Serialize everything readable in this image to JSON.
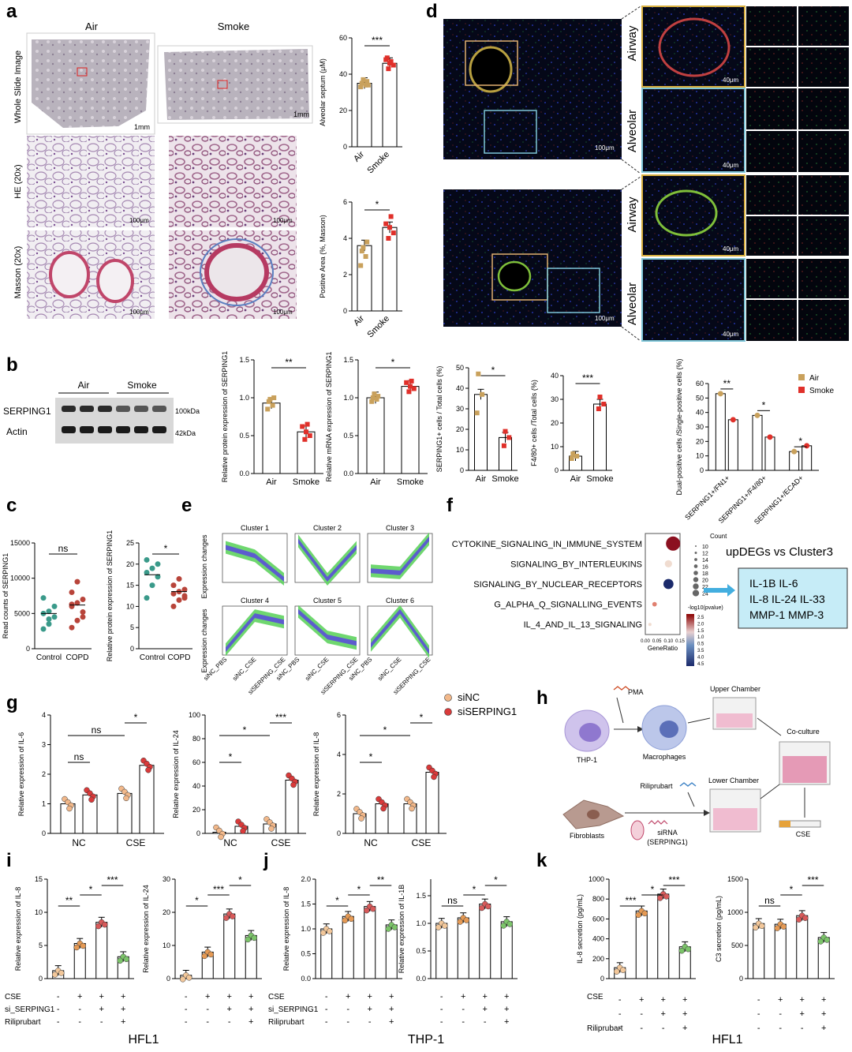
{
  "panels": {
    "a": {
      "letter": "a",
      "col_air": "Air",
      "col_smoke": "Smoke",
      "row_wsi": "Whole Slide Image",
      "row_he": "HE (20x)",
      "row_masson": "Masson (20x)",
      "scale_1mm": "1mm",
      "scale_100um": "100μm"
    },
    "d": {
      "letter": "d",
      "airway": "Airway",
      "alveolar": "Alveolar",
      "scale_100um": "100μm",
      "scale_40um": "40μm"
    },
    "b": {
      "letter": "b",
      "wb_air": "Air",
      "wb_smoke": "Smoke",
      "wb_serping1": "SERPING1",
      "wb_actin": "Actin",
      "wb_100kda": "100kDa",
      "wb_42kda": "42kDa"
    },
    "c": {
      "letter": "c"
    },
    "e": {
      "letter": "e",
      "ylabel": "Expression changes",
      "clusters": [
        "Cluster 1",
        "Cluster 2",
        "Cluster 3",
        "Cluster 4",
        "Cluster 5",
        "Cluster 6"
      ],
      "xticks": [
        "siNC_PBS",
        "siNC_CSE",
        "siSERPING_CSE"
      ]
    },
    "f": {
      "letter": "f",
      "terms": [
        "CYTOKINE_SIGNALING_IN_IMMUNE_SYSTEM",
        "SIGNALING_BY_INTERLEUKINS",
        "SIGNALING_BY_NUCLEAR_RECEPTORS",
        "G_ALPHA_Q_SIGNALLING_EVENTS",
        "IL_4_AND_IL_13_SIGNALING"
      ],
      "xlabel": "GeneRatio",
      "xticks": [
        "0.00",
        "0.05",
        "0.10",
        "0.15"
      ],
      "count_title": "Count",
      "count_values": [
        "10",
        "12",
        "14",
        "16",
        "18",
        "20",
        "22",
        "24"
      ],
      "color_title": "-log10(pvalue)",
      "color_values": [
        "2.5",
        "2.0",
        "1.5",
        "1.0",
        "0.5",
        "3.5",
        "4.0",
        "4.5"
      ],
      "box_title": "upDEGs vs Cluster3",
      "box_lines": [
        "IL-1B IL-6",
        "IL-8 IL-24 IL-33",
        "MMP-1 MMP-3"
      ]
    },
    "g": {
      "letter": "g",
      "legend": [
        "siNC",
        "siSERPING1"
      ]
    },
    "h": {
      "letter": "h",
      "thp1": "THP-1",
      "pma": "PMA",
      "macrophages": "Macrophages",
      "upper": "Upper Chamber",
      "coculture": "Co-culture",
      "lower": "Lower Chamber",
      "riliprubart": "Riliprubart",
      "fibroblasts": "Fibroblasts",
      "sirna": "siRNA",
      "sirna2": "(SERPING1)",
      "cse": "CSE"
    },
    "i": {
      "letter": "i",
      "cell": "HFL1"
    },
    "j": {
      "letter": "j",
      "cell": "THP-1"
    },
    "k": {
      "letter": "k",
      "cell": "HFL1"
    }
  },
  "treat_labels": {
    "cse": "CSE",
    "si": "si_SERPING1",
    "ril": "Riliprubart"
  },
  "treat_signs": {
    "cse": [
      "-",
      "+",
      "+",
      "+"
    ],
    "si": [
      "-",
      "-",
      "+",
      "+"
    ],
    "ril": [
      "-",
      "-",
      "-",
      "+"
    ]
  },
  "colors": {
    "air": "#c9a15c",
    "smoke": "#e0302a",
    "copd_control": "#3a9a8a",
    "copd": "#b8443a",
    "sinc": "#f2b88a",
    "siserping": "#d93a3a",
    "g1": "#f2c79a",
    "g2": "#e59a55",
    "g3": "#d85a5a",
    "g4": "#7cc46a",
    "box_fill": "#c6ecf7"
  },
  "chart_data": [
    {
      "id": "a_top",
      "type": "bar",
      "categories": [
        "Air",
        "Smoke"
      ],
      "values": [
        35,
        46
      ],
      "ylabel": "Alveolar septum (μM)",
      "ylim": [
        0,
        60
      ],
      "yticks": [
        0,
        20,
        40,
        60
      ],
      "sig": [
        "***"
      ],
      "points": [
        [
          33,
          34,
          35,
          36,
          37,
          34
        ],
        [
          43,
          45,
          46,
          48,
          47,
          49
        ]
      ]
    },
    {
      "id": "a_bottom",
      "type": "bar",
      "categories": [
        "Air",
        "Smoke"
      ],
      "values": [
        3.6,
        4.6
      ],
      "ylabel": "Positive Area (%, Masson)",
      "ylim": [
        0,
        6
      ],
      "yticks": [
        0,
        2,
        4,
        6
      ],
      "sig": [
        "*"
      ],
      "points": [
        [
          2.5,
          3.0,
          3.3,
          3.8,
          3.5
        ],
        [
          4.0,
          4.3,
          4.6,
          4.8,
          5.2
        ]
      ]
    },
    {
      "id": "b_protein",
      "type": "bar",
      "categories": [
        "Air",
        "Smoke"
      ],
      "values": [
        0.93,
        0.55
      ],
      "ylabel": "Relative protein expression of SERPING1",
      "ylim": [
        0,
        1.5
      ],
      "yticks": [
        0.0,
        0.5,
        1.0,
        1.5
      ],
      "sig": [
        "**"
      ],
      "points": [
        [
          0.85,
          0.9,
          0.95,
          1.0,
          0.98
        ],
        [
          0.45,
          0.5,
          0.55,
          0.62,
          0.65
        ]
      ]
    },
    {
      "id": "b_mrna",
      "type": "bar",
      "categories": [
        "Air",
        "Smoke"
      ],
      "values": [
        1.0,
        1.15
      ],
      "ylabel": "Relative mRNA expression of SERPING1",
      "ylim": [
        0,
        1.5
      ],
      "yticks": [
        0.0,
        0.5,
        1.0,
        1.5
      ],
      "sig": [
        "*"
      ],
      "points": [
        [
          0.95,
          0.98,
          1.0,
          1.02,
          1.05
        ],
        [
          1.08,
          1.12,
          1.15,
          1.2,
          1.22
        ]
      ]
    },
    {
      "id": "d_serping",
      "type": "bar",
      "categories": [
        "Air",
        "Smoke"
      ],
      "values": [
        37,
        16
      ],
      "ylabel": "SERPING1+ cells / Total cells (%)",
      "ylim": [
        0,
        50
      ],
      "yticks": [
        0,
        10,
        20,
        30,
        40,
        50
      ],
      "sig": [
        "*"
      ],
      "points": [
        [
          28,
          37,
          47
        ],
        [
          12,
          16,
          19
        ]
      ]
    },
    {
      "id": "d_f480",
      "type": "bar",
      "categories": [
        "Air",
        "Smoke"
      ],
      "values": [
        6,
        28
      ],
      "ylabel": "F4/80+ cells /Total cells (%)",
      "ylim": [
        0,
        40
      ],
      "yticks": [
        0,
        10,
        20,
        30,
        40
      ],
      "sig": [
        "***"
      ],
      "points": [
        [
          5,
          6,
          7
        ],
        [
          26,
          28,
          31
        ]
      ]
    },
    {
      "id": "d_dual",
      "type": "bar",
      "categories": [
        "SERPING1+/FN1+",
        "SERPING1+/F4/80+",
        "SERPING1+/ECAD+"
      ],
      "series": [
        {
          "name": "Air",
          "values": [
            53,
            38,
            13
          ]
        },
        {
          "name": "Smoke",
          "values": [
            35,
            23,
            17
          ]
        }
      ],
      "ylabel": "Dual-positive cells /Single-positive cells (%)",
      "ylim": [
        0,
        60
      ],
      "yticks": [
        0,
        10,
        20,
        30,
        40,
        50,
        60
      ],
      "sig": [
        "**",
        "*",
        "*"
      ]
    },
    {
      "id": "c_counts",
      "type": "scatter",
      "categories": [
        "Control",
        "COPD"
      ],
      "values": [
        5000,
        6200
      ],
      "ylabel": "Read counts of SERPING1",
      "ylim": [
        0,
        15000
      ],
      "yticks": [
        0,
        5000,
        10000,
        15000
      ],
      "sig": [
        "ns"
      ],
      "points": [
        [
          2800,
          3500,
          4500,
          5000,
          5300,
          6000,
          7200,
          4200
        ],
        [
          3000,
          4000,
          5200,
          6000,
          6500,
          7000,
          8000,
          9500,
          4500,
          6300
        ]
      ]
    },
    {
      "id": "c_protein",
      "type": "scatter",
      "categories": [
        "Control",
        "COPD"
      ],
      "values": [
        17.5,
        13.5
      ],
      "ylabel": "Relative protein expression of SERPING1",
      "ylim": [
        0,
        25
      ],
      "yticks": [
        0,
        5,
        10,
        15,
        20,
        25
      ],
      "sig": [
        "*"
      ],
      "points": [
        [
          12,
          15,
          17,
          18,
          19,
          20,
          21
        ],
        [
          10,
          11.5,
          12,
          13,
          13.5,
          14,
          15,
          16.5,
          12.5
        ]
      ]
    },
    {
      "id": "f_dots",
      "type": "scatter",
      "y": [
        "CYTOKINE_SIGNALING_IN_IMMUNE_SYSTEM",
        "SIGNALING_BY_INTERLEUKINS",
        "SIGNALING_BY_NUCLEAR_RECEPTORS",
        "G_ALPHA_Q_SIGNALLING_EVENTS",
        "IL_4_AND_IL_13_SIGNALING"
      ],
      "x": [
        0.12,
        0.1,
        0.1,
        0.04,
        0.02
      ],
      "count": [
        24,
        14,
        18,
        10,
        8
      ],
      "neglog10p": [
        2.5,
        1.0,
        4.5,
        1.5,
        1.0
      ],
      "xlim": [
        0,
        0.15
      ]
    },
    {
      "id": "g_il6",
      "type": "bar",
      "categories": [
        "NC",
        "CSE"
      ],
      "series": [
        {
          "name": "siNC",
          "values": [
            1.0,
            1.35
          ]
        },
        {
          "name": "siSERPING1",
          "values": [
            1.3,
            2.3
          ]
        }
      ],
      "ylabel": "Relative expression of IL-6",
      "ylim": [
        0,
        4
      ],
      "yticks": [
        0,
        1,
        2,
        3,
        4
      ],
      "sig": [
        "ns",
        "ns",
        "*"
      ]
    },
    {
      "id": "g_il24",
      "type": "bar",
      "categories": [
        "NC",
        "CSE"
      ],
      "series": [
        {
          "name": "siNC",
          "values": [
            1.0,
            8.0
          ]
        },
        {
          "name": "siSERPING1",
          "values": [
            6.0,
            45.0
          ]
        }
      ],
      "ylabel": "Relative expression of IL-24",
      "ylim": [
        0,
        100
      ],
      "yticks": [
        0,
        20,
        40,
        60,
        80,
        100
      ],
      "sig": [
        "*",
        "*",
        "***"
      ]
    },
    {
      "id": "g_il8",
      "type": "bar",
      "categories": [
        "NC",
        "CSE"
      ],
      "series": [
        {
          "name": "siNC",
          "values": [
            1.0,
            1.5
          ]
        },
        {
          "name": "siSERPING1",
          "values": [
            1.5,
            3.1
          ]
        }
      ],
      "ylabel": "Relative expression of IL-8",
      "ylim": [
        0,
        6
      ],
      "yticks": [
        0,
        2,
        4,
        6
      ],
      "sig": [
        "*",
        "*",
        "*"
      ]
    },
    {
      "id": "i_il8",
      "type": "bar",
      "categories": [
        "1",
        "2",
        "3",
        "4"
      ],
      "values": [
        1.2,
        5.3,
        8.5,
        3.3
      ],
      "ylabel": "Relative expression of IL-8",
      "ylim": [
        0,
        15
      ],
      "yticks": [
        0,
        5,
        10,
        15
      ],
      "sig": [
        "**",
        "*",
        "***"
      ]
    },
    {
      "id": "i_il24",
      "type": "bar",
      "categories": [
        "1",
        "2",
        "3",
        "4"
      ],
      "values": [
        1.0,
        8.0,
        19.5,
        13.0
      ],
      "ylabel": "Relative expression of IL-24",
      "ylim": [
        0,
        30
      ],
      "yticks": [
        0,
        10,
        20,
        30
      ],
      "sig": [
        "*",
        "***",
        "*"
      ]
    },
    {
      "id": "j_il8",
      "type": "bar",
      "categories": [
        "1",
        "2",
        "3",
        "4"
      ],
      "values": [
        1.0,
        1.25,
        1.45,
        1.08
      ],
      "ylabel": "Relative expression of IL-8",
      "ylim": [
        0,
        2.0
      ],
      "yticks": [
        0.0,
        0.5,
        1.0,
        1.5,
        2.0
      ],
      "sig": [
        "*",
        "*",
        "**"
      ]
    },
    {
      "id": "j_il1b",
      "type": "bar",
      "categories": [
        "1",
        "2",
        "3",
        "4"
      ],
      "values": [
        1.0,
        1.1,
        1.35,
        1.03
      ],
      "ylabel": "Relative expression of IL-1B",
      "ylim": [
        0,
        1.8
      ],
      "yticks": [
        0.0,
        0.5,
        1.0,
        1.5
      ],
      "sig": [
        "ns",
        "*",
        "*"
      ]
    },
    {
      "id": "k_il8",
      "type": "bar",
      "categories": [
        "1",
        "2",
        "3",
        "4"
      ],
      "values": [
        110,
        680,
        850,
        320
      ],
      "ylabel": "IL-8 secretion (pg/mL)",
      "ylim": [
        0,
        1000
      ],
      "yticks": [
        0,
        200,
        400,
        600,
        800,
        1000
      ],
      "sig": [
        "***",
        "*",
        "***"
      ]
    },
    {
      "id": "k_c3",
      "type": "bar",
      "categories": [
        "1",
        "2",
        "3",
        "4"
      ],
      "values": [
        830,
        820,
        950,
        620
      ],
      "ylabel": "C3 secretion (pg/mL)",
      "ylim": [
        0,
        1500
      ],
      "yticks": [
        0,
        500,
        1000,
        1500
      ],
      "sig": [
        "ns",
        "*",
        "***"
      ]
    }
  ]
}
